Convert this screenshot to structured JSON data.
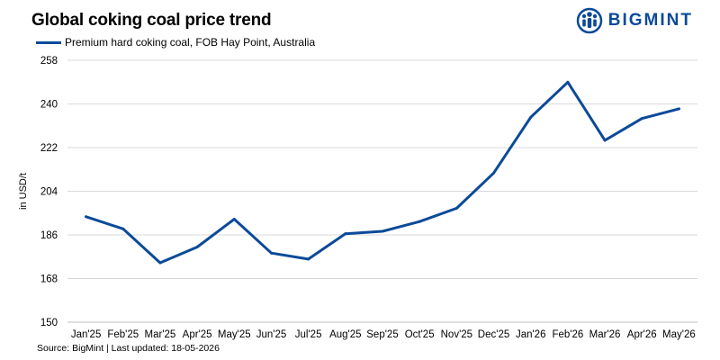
{
  "header": {
    "title": "Global coking coal price trend",
    "brand_name": "BIGMINT",
    "brand_icon": "bigmint-logo-icon",
    "brand_color": "#0b4a99"
  },
  "footer": {
    "source": "Source: BigMint | Last updated: 18-05-2026"
  },
  "chart_data": {
    "type": "line",
    "title": "Global coking coal price trend",
    "ylabel": "in USD/t",
    "xlabel": "",
    "categories": [
      "Jan'25",
      "Feb'25",
      "Mar'25",
      "Apr'25",
      "May'25",
      "Jun'25",
      "Jul'25",
      "Aug'25",
      "Sep'25",
      "Oct'25",
      "Nov'25",
      "Dec'25",
      "Jan'26",
      "Feb'26",
      "Mar'26",
      "Apr'26",
      "May'26"
    ],
    "series": [
      {
        "name": "Premium hard coking coal, FOB Hay Point, Australia",
        "color": "#0b4a99",
        "values": [
          193.5,
          188.5,
          174.5,
          181,
          192.5,
          178.5,
          176,
          186.5,
          187.5,
          191.5,
          197,
          211.5,
          234.5,
          249,
          225,
          234,
          238
        ]
      }
    ],
    "ylim": [
      150,
      258
    ],
    "yticks": [
      150,
      168,
      186,
      204,
      222,
      240,
      258
    ],
    "grid": true,
    "legend": "top-left"
  }
}
